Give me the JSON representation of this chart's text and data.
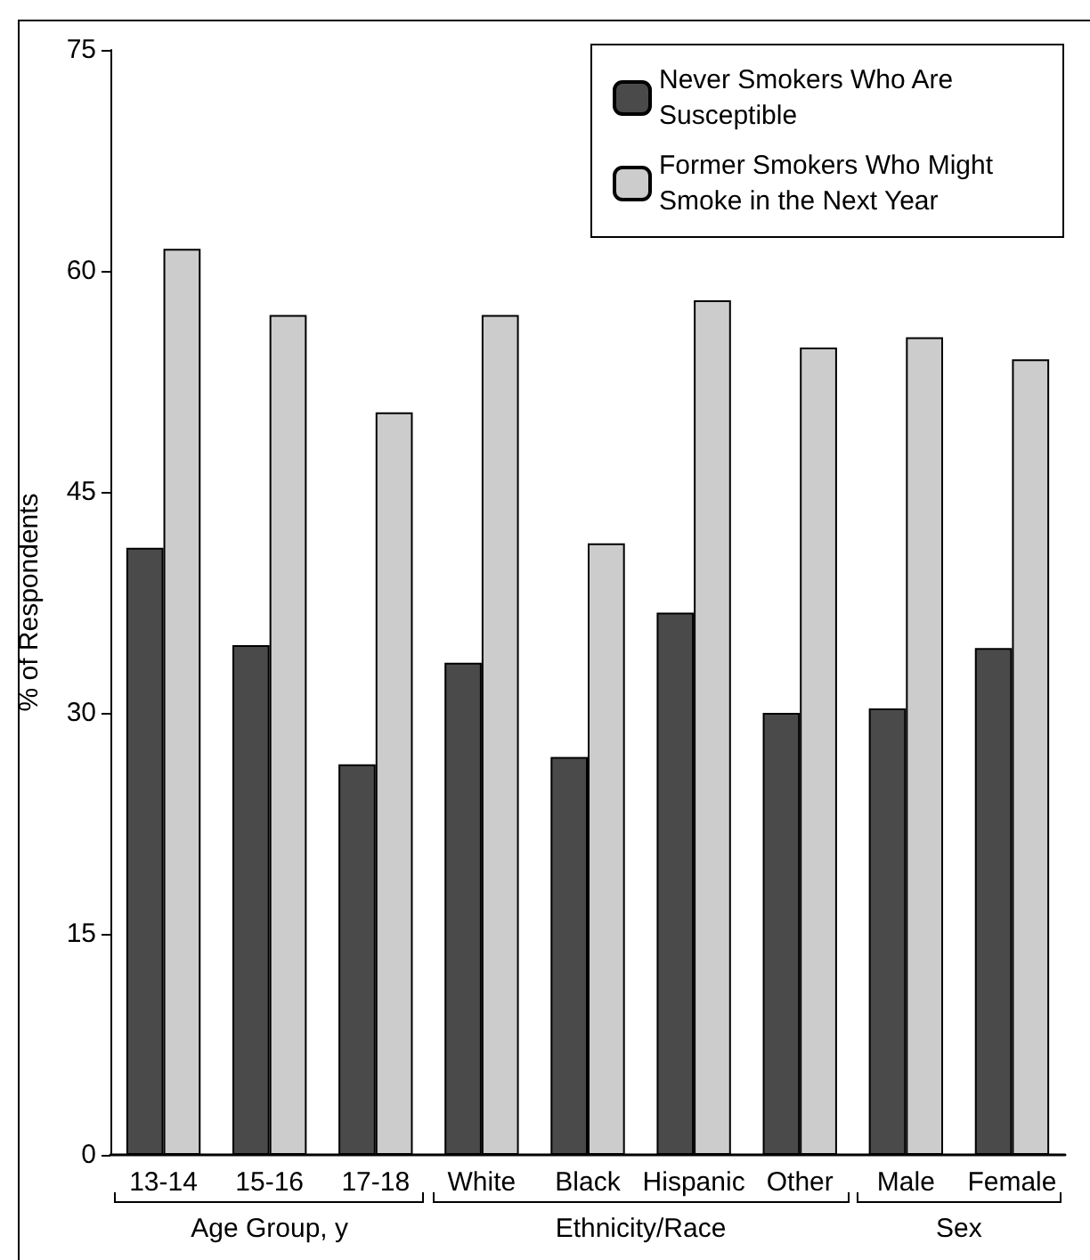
{
  "chart_data": {
    "type": "bar",
    "ylabel": "% of Respondents",
    "categories": [
      "13-14",
      "15-16",
      "17-18",
      "White",
      "Black",
      "Hispanic",
      "Other",
      "Male",
      "Female"
    ],
    "series": [
      {
        "name": "Never Smokers Who Are Susceptible",
        "color": "#4a4a4a",
        "values": [
          41.2,
          34.6,
          26.5,
          33.4,
          27.0,
          36.8,
          30.0,
          30.3,
          34.4
        ]
      },
      {
        "name": "Former Smokers Who Might Smoke in the Next Year",
        "color": "#cccccc",
        "values": [
          61.5,
          57.0,
          50.4,
          57.0,
          41.5,
          58.0,
          54.8,
          55.5,
          54.0
        ]
      }
    ],
    "ylim": [
      0,
      75
    ],
    "yticks": [
      0,
      15,
      30,
      45,
      60,
      75
    ],
    "grid": false,
    "legend": "top right",
    "annotations": [
      "Age Group, y",
      "Ethnicity/Race",
      "Sex"
    ]
  }
}
